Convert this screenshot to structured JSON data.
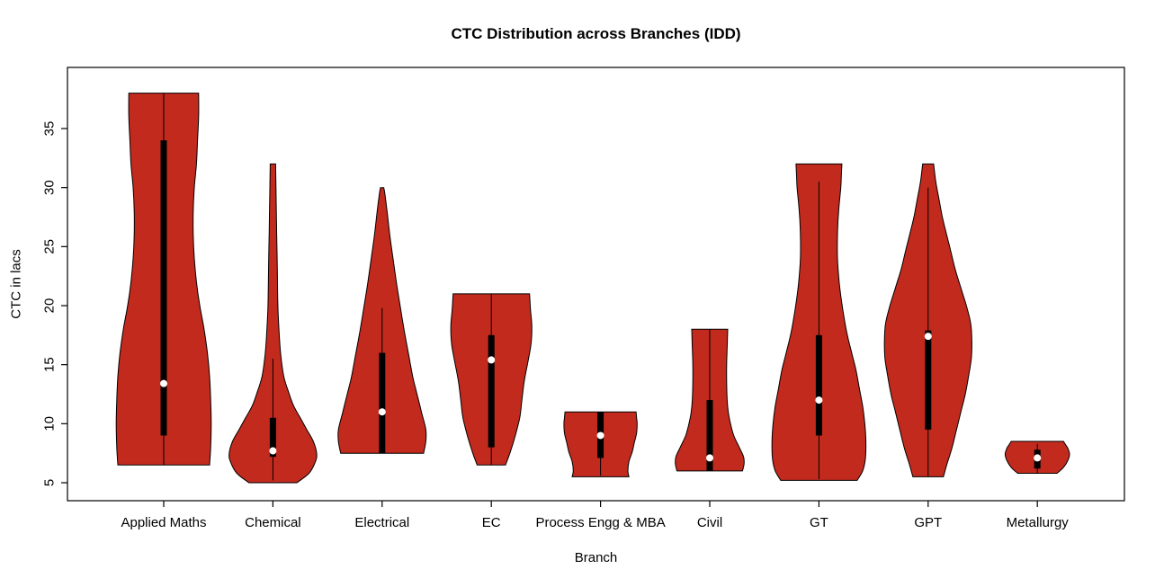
{
  "colors": {
    "violin_fill": "#C22A1E",
    "violin_stroke": "#000000",
    "box": "#000000",
    "median_dot": "#FFFFFF",
    "axis": "#000000",
    "background": "#FFFFFF"
  },
  "chart_data": {
    "type": "violin",
    "title": "CTC Distribution across Branches (IDD)",
    "xlabel": "Branch",
    "ylabel": "CTC in lacs",
    "y_ticks": [
      5,
      10,
      15,
      20,
      25,
      30,
      35
    ],
    "ylim": [
      3.5,
      40
    ],
    "grid": false,
    "legend": "none",
    "categories": [
      "Applied Maths",
      "Chemical",
      "Electrical",
      "EC",
      "Process Engg & MBA",
      "Civil",
      "GT",
      "GPT",
      "Metallurgy"
    ],
    "series": [
      {
        "name": "Applied Maths",
        "min": 6.5,
        "max": 38,
        "q1": 9,
        "q3": 34,
        "median": 13.4,
        "whisker_low": 6.5,
        "whisker_high": 38,
        "profile": [
          [
            6.5,
            0.42
          ],
          [
            8,
            0.43
          ],
          [
            10,
            0.435
          ],
          [
            12,
            0.43
          ],
          [
            14,
            0.42
          ],
          [
            16,
            0.4
          ],
          [
            18,
            0.37
          ],
          [
            20,
            0.33
          ],
          [
            22,
            0.3
          ],
          [
            24,
            0.28
          ],
          [
            26,
            0.27
          ],
          [
            28,
            0.27
          ],
          [
            30,
            0.28
          ],
          [
            32,
            0.3
          ],
          [
            34,
            0.31
          ],
          [
            36,
            0.32
          ],
          [
            38,
            0.32
          ]
        ]
      },
      {
        "name": "Chemical",
        "min": 5,
        "max": 32,
        "q1": 7.2,
        "q3": 10.5,
        "median": 7.7,
        "whisker_low": 5.2,
        "whisker_high": 15.5,
        "profile": [
          [
            5,
            0.22
          ],
          [
            5.8,
            0.33
          ],
          [
            6.8,
            0.39
          ],
          [
            7.5,
            0.4
          ],
          [
            8.5,
            0.37
          ],
          [
            9.5,
            0.31
          ],
          [
            10.5,
            0.25
          ],
          [
            11.5,
            0.19
          ],
          [
            12.5,
            0.15
          ],
          [
            14,
            0.1
          ],
          [
            16,
            0.07
          ],
          [
            18,
            0.055
          ],
          [
            20,
            0.045
          ],
          [
            23,
            0.04
          ],
          [
            26,
            0.035
          ],
          [
            29,
            0.03
          ],
          [
            32,
            0.025
          ]
        ]
      },
      {
        "name": "Electrical",
        "min": 7.5,
        "max": 30,
        "q1": 7.5,
        "q3": 16,
        "median": 11,
        "whisker_low": 7.5,
        "whisker_high": 19.8,
        "profile": [
          [
            7.5,
            0.38
          ],
          [
            8.5,
            0.4
          ],
          [
            9.5,
            0.4
          ],
          [
            11,
            0.36
          ],
          [
            12.5,
            0.32
          ],
          [
            14,
            0.28
          ],
          [
            16,
            0.24
          ],
          [
            18,
            0.2
          ],
          [
            20,
            0.165
          ],
          [
            22,
            0.13
          ],
          [
            24,
            0.1
          ],
          [
            26,
            0.07
          ],
          [
            28,
            0.045
          ],
          [
            29.5,
            0.025
          ],
          [
            30,
            0.015
          ]
        ]
      },
      {
        "name": "EC",
        "min": 6.5,
        "max": 21,
        "q1": 8,
        "q3": 17.5,
        "median": 15.4,
        "whisker_low": 6.5,
        "whisker_high": 21,
        "profile": [
          [
            6.5,
            0.13
          ],
          [
            7.5,
            0.17
          ],
          [
            9,
            0.22
          ],
          [
            10.5,
            0.26
          ],
          [
            12,
            0.28
          ],
          [
            13.5,
            0.3
          ],
          [
            15,
            0.33
          ],
          [
            16.5,
            0.36
          ],
          [
            17.5,
            0.37
          ],
          [
            18.5,
            0.37
          ],
          [
            19.5,
            0.36
          ],
          [
            20.2,
            0.355
          ],
          [
            21,
            0.35
          ]
        ]
      },
      {
        "name": "Process Engg & MBA",
        "min": 5.5,
        "max": 11,
        "q1": 7.1,
        "q3": 11,
        "median": 9,
        "whisker_low": 5.6,
        "whisker_high": 11,
        "profile": [
          [
            5.5,
            0.26
          ],
          [
            6,
            0.25
          ],
          [
            6.8,
            0.26
          ],
          [
            7.6,
            0.29
          ],
          [
            8.4,
            0.31
          ],
          [
            9.2,
            0.33
          ],
          [
            10,
            0.335
          ],
          [
            10.5,
            0.33
          ],
          [
            11,
            0.325
          ]
        ]
      },
      {
        "name": "Civil",
        "min": 6,
        "max": 18,
        "q1": 6,
        "q3": 12,
        "median": 7.1,
        "whisker_low": 6,
        "whisker_high": 18,
        "profile": [
          [
            6,
            0.3
          ],
          [
            6.6,
            0.315
          ],
          [
            7.2,
            0.31
          ],
          [
            8,
            0.27
          ],
          [
            9,
            0.22
          ],
          [
            10,
            0.19
          ],
          [
            11,
            0.17
          ],
          [
            12,
            0.16
          ],
          [
            13.5,
            0.155
          ],
          [
            15,
            0.155
          ],
          [
            16.5,
            0.16
          ],
          [
            18,
            0.165
          ]
        ]
      },
      {
        "name": "GT",
        "min": 5.2,
        "max": 32,
        "q1": 9,
        "q3": 17.5,
        "median": 12,
        "whisker_low": 5.3,
        "whisker_high": 30.5,
        "profile": [
          [
            5.2,
            0.35
          ],
          [
            6,
            0.4
          ],
          [
            7,
            0.425
          ],
          [
            8.5,
            0.43
          ],
          [
            10,
            0.42
          ],
          [
            11.5,
            0.4
          ],
          [
            13,
            0.37
          ],
          [
            14.5,
            0.34
          ],
          [
            16,
            0.3
          ],
          [
            17.5,
            0.26
          ],
          [
            19,
            0.23
          ],
          [
            20.5,
            0.205
          ],
          [
            22,
            0.185
          ],
          [
            24,
            0.17
          ],
          [
            26,
            0.17
          ],
          [
            28,
            0.18
          ],
          [
            30,
            0.2
          ],
          [
            31,
            0.205
          ],
          [
            32,
            0.21
          ]
        ]
      },
      {
        "name": "GPT",
        "min": 5.5,
        "max": 32,
        "q1": 9.5,
        "q3": 17.9,
        "median": 17.4,
        "whisker_low": 5.5,
        "whisker_high": 30,
        "profile": [
          [
            5.5,
            0.14
          ],
          [
            6.5,
            0.17
          ],
          [
            8,
            0.22
          ],
          [
            9.5,
            0.26
          ],
          [
            11,
            0.3
          ],
          [
            12.5,
            0.34
          ],
          [
            14,
            0.37
          ],
          [
            15.5,
            0.395
          ],
          [
            17,
            0.4
          ],
          [
            18.5,
            0.39
          ],
          [
            20,
            0.35
          ],
          [
            21.5,
            0.3
          ],
          [
            23,
            0.25
          ],
          [
            24.5,
            0.21
          ],
          [
            26,
            0.17
          ],
          [
            27.5,
            0.13
          ],
          [
            29,
            0.1
          ],
          [
            30.5,
            0.07
          ],
          [
            32,
            0.05
          ]
        ]
      },
      {
        "name": "Metallurgy",
        "min": 5.8,
        "max": 8.5,
        "q1": 6.2,
        "q3": 7.8,
        "median": 7.1,
        "whisker_low": 5.8,
        "whisker_high": 8.3,
        "profile": [
          [
            5.8,
            0.18
          ],
          [
            6.3,
            0.24
          ],
          [
            6.9,
            0.28
          ],
          [
            7.4,
            0.295
          ],
          [
            7.9,
            0.28
          ],
          [
            8.2,
            0.26
          ],
          [
            8.5,
            0.24
          ]
        ]
      }
    ]
  }
}
